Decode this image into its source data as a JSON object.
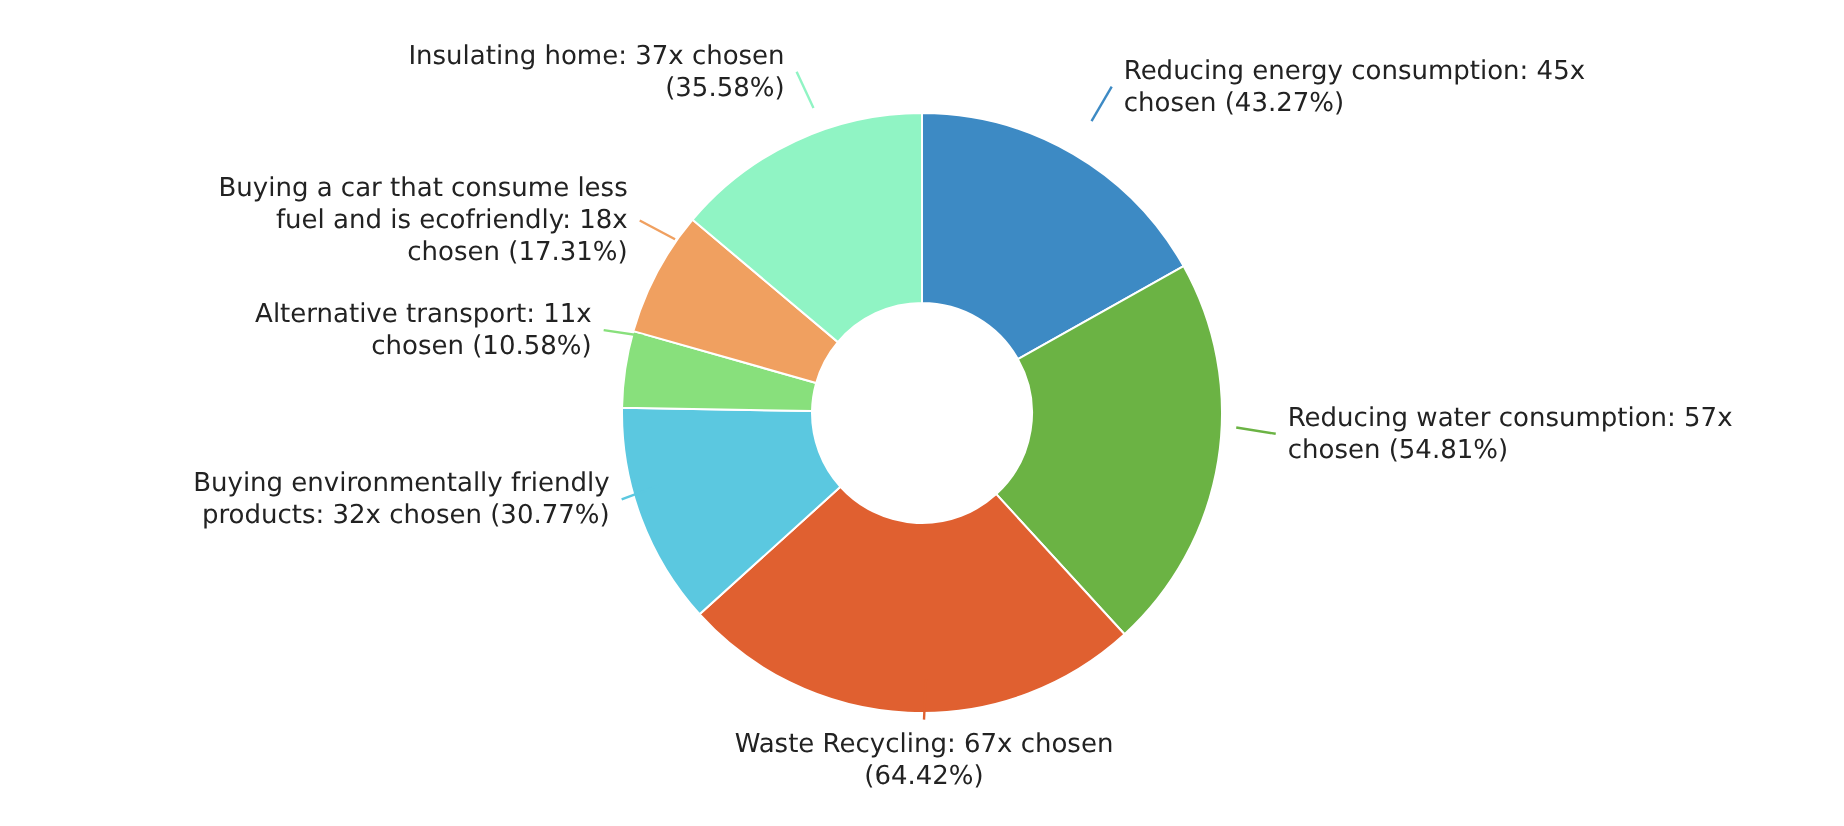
{
  "chart_data": {
    "type": "donut",
    "categories": [
      "Reducing energy consumption",
      "Reducing water consumption",
      "Waste Recycling",
      "Buying environmentally friendly products",
      "Alternative transport",
      "Buying a car that consume less fuel and is ecofriendly",
      "Insulating home"
    ],
    "values": [
      45,
      57,
      67,
      32,
      11,
      18,
      37
    ],
    "colors": [
      "#3d8ac4",
      "#6bb344",
      "#e06030",
      "#5bc8e0",
      "#88e07c",
      "#f0a060",
      "#90f4c4"
    ],
    "value_labels": [
      "45x chosen (43.27%)",
      "57x chosen (54.81%)",
      "67x chosen (64.42%)",
      "32x chosen (30.77%)",
      "11x chosen (10.58%)",
      "18x chosen (17.31%)",
      "37x chosen (35.58%)"
    ]
  }
}
